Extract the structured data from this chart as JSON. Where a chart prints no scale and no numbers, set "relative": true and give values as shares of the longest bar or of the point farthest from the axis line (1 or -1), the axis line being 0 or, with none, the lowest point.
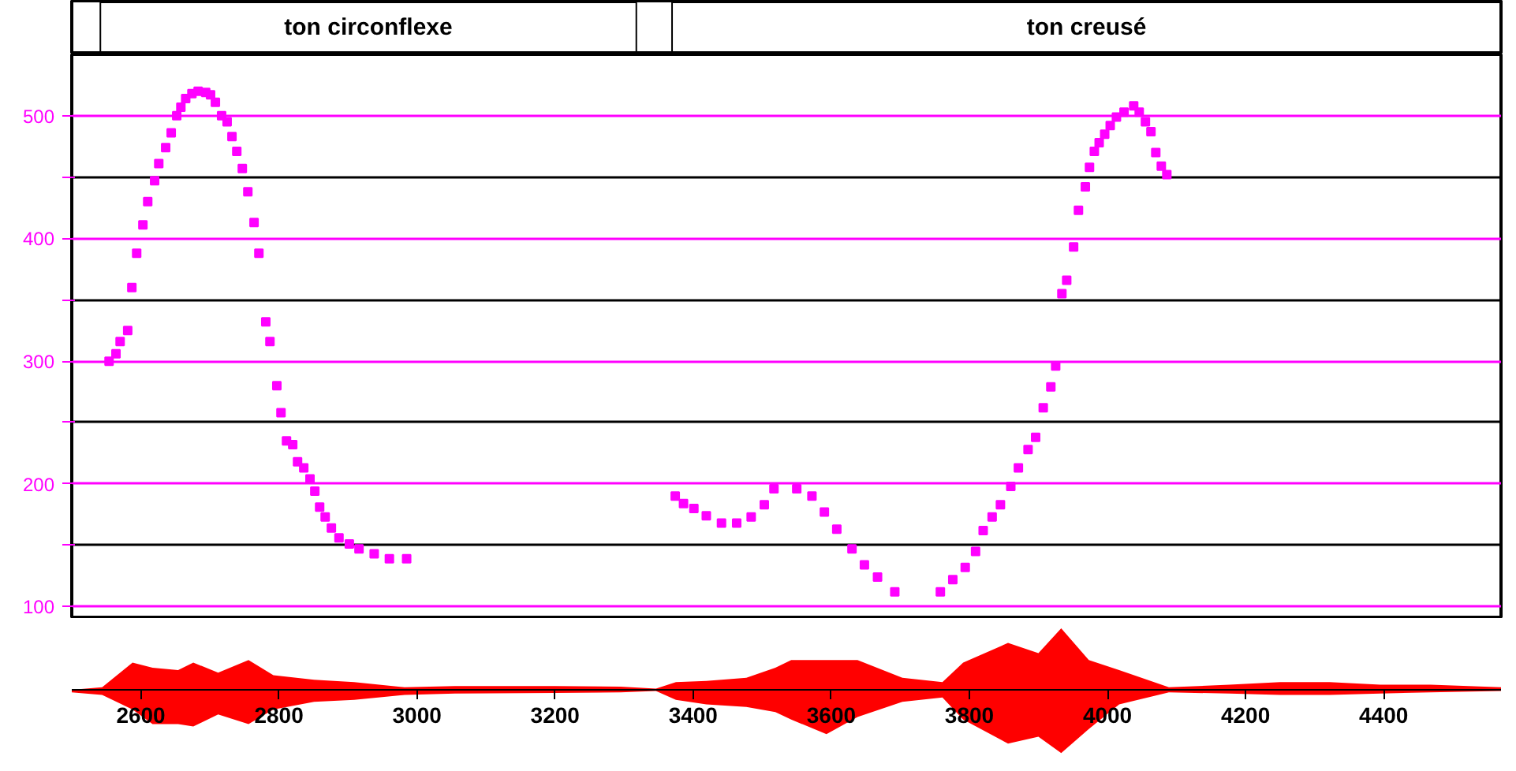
{
  "chart_data": [
    {
      "type": "scatter",
      "xlim": [
        2500,
        4570
      ],
      "ylim": [
        90,
        550
      ],
      "yticks": [
        100,
        {
          "value": 150,
          "label": null
        },
        200,
        {
          "value": 250,
          "label": null
        },
        300,
        {
          "value": 350,
          "label": null
        },
        400,
        {
          "value": 450,
          "label": null
        },
        500
      ],
      "tick_labels": "y",
      "grid": "y",
      "marker": "square",
      "annotations": [
        "ton circonflexe",
        "ton creusé"
      ],
      "series": [
        {
          "color": "#ff00ff",
          "x": [
            2554,
            2564,
            2570,
            2581,
            2587,
            2594,
            2603,
            2610,
            2620,
            2626,
            2636,
            2644,
            2652,
            2658,
            2665,
            2674,
            2683,
            2694,
            2701,
            2708,
            2717,
            2725,
            2732,
            2739,
            2747,
            2755,
            2764,
            2771,
            2781,
            2787,
            2797,
            2803,
            2811,
            2820,
            2827,
            2836,
            2845,
            2852,
            2859,
            2867,
            2876,
            2887,
            2902,
            2916,
            2938,
            2960,
            2985,
            3374,
            3386,
            3401,
            3419,
            3441,
            3463,
            3484,
            3503,
            3517,
            3550,
            3572,
            3590,
            3608,
            3630,
            3648,
            3667,
            3692,
            3758,
            3776,
            3794,
            3809,
            3820,
            3833,
            3845,
            3860,
            3871,
            3885,
            3896,
            3907,
            3918,
            3925,
            3934,
            3941,
            3951,
            3958,
            3968,
            3974,
            3981,
            3988,
            3996,
            4004,
            4013,
            4024,
            4038,
            4046,
            4055,
            4063,
            4070,
            4078,
            4086
          ],
          "values": [
            300,
            306,
            316,
            325,
            360,
            388,
            411,
            430,
            447,
            461,
            474,
            486,
            500,
            507,
            514,
            518,
            520,
            519,
            517,
            511,
            500,
            495,
            483,
            471,
            457,
            438,
            413,
            388,
            332,
            316,
            280,
            258,
            235,
            232,
            218,
            213,
            204,
            194,
            181,
            173,
            164,
            156,
            151,
            147,
            143,
            139,
            139,
            190,
            184,
            180,
            174,
            168,
            168,
            173,
            183,
            196,
            196,
            190,
            177,
            163,
            147,
            134,
            124,
            112,
            112,
            122,
            132,
            145,
            162,
            173,
            183,
            198,
            213,
            228,
            238,
            262,
            279,
            296,
            355,
            366,
            393,
            423,
            442,
            458,
            471,
            478,
            485,
            492,
            499,
            503,
            508,
            503,
            495,
            487,
            470,
            459,
            452
          ]
        }
      ]
    },
    {
      "type": "area",
      "relative": true,
      "xlim": [
        2500,
        4570
      ],
      "xticks": [
        2600,
        2800,
        3000,
        3200,
        3400,
        3600,
        3800,
        4000,
        4200,
        4400
      ],
      "tick_labels": "x",
      "x": [
        2500,
        2544,
        2588,
        2617,
        2654,
        2676,
        2712,
        2756,
        2792,
        2851,
        2909,
        2982,
        3055,
        3200,
        3295,
        3346,
        3375,
        3419,
        3477,
        3519,
        3542,
        3593,
        3638,
        3703,
        3761,
        3791,
        3856,
        3900,
        3933,
        3973,
        4017,
        4089,
        4177,
        4250,
        4322,
        4395,
        4468,
        4570
      ],
      "series": [
        {
          "color": "#ff0000",
          "values": [
            0,
            0.04,
            0.43,
            0.35,
            0.31,
            0.43,
            0.27,
            0.47,
            0.23,
            0.16,
            0.12,
            0.04,
            0.06,
            0.06,
            0.05,
            0.02,
            0.12,
            0.14,
            0.19,
            0.35,
            0.47,
            0.47,
            0.47,
            0.19,
            0.12,
            0.43,
            0.74,
            0.58,
            0.97,
            0.47,
            0.31,
            0.04,
            0.08,
            0.12,
            0.12,
            0.08,
            0.08,
            0.04
          ]
        },
        {
          "color": "#fe0000",
          "values": [
            -0.04,
            -0.08,
            -0.31,
            -0.54,
            -0.54,
            -0.58,
            -0.39,
            -0.54,
            -0.31,
            -0.19,
            -0.16,
            -0.08,
            -0.06,
            -0.05,
            -0.04,
            -0.02,
            -0.16,
            -0.23,
            -0.27,
            -0.35,
            -0.47,
            -0.7,
            -0.43,
            -0.19,
            -0.12,
            -0.47,
            -0.85,
            -0.74,
            -1,
            -0.62,
            -0.23,
            -0.04,
            -0.06,
            -0.08,
            -0.08,
            -0.06,
            -0.04,
            -0.02
          ]
        }
      ]
    }
  ]
}
